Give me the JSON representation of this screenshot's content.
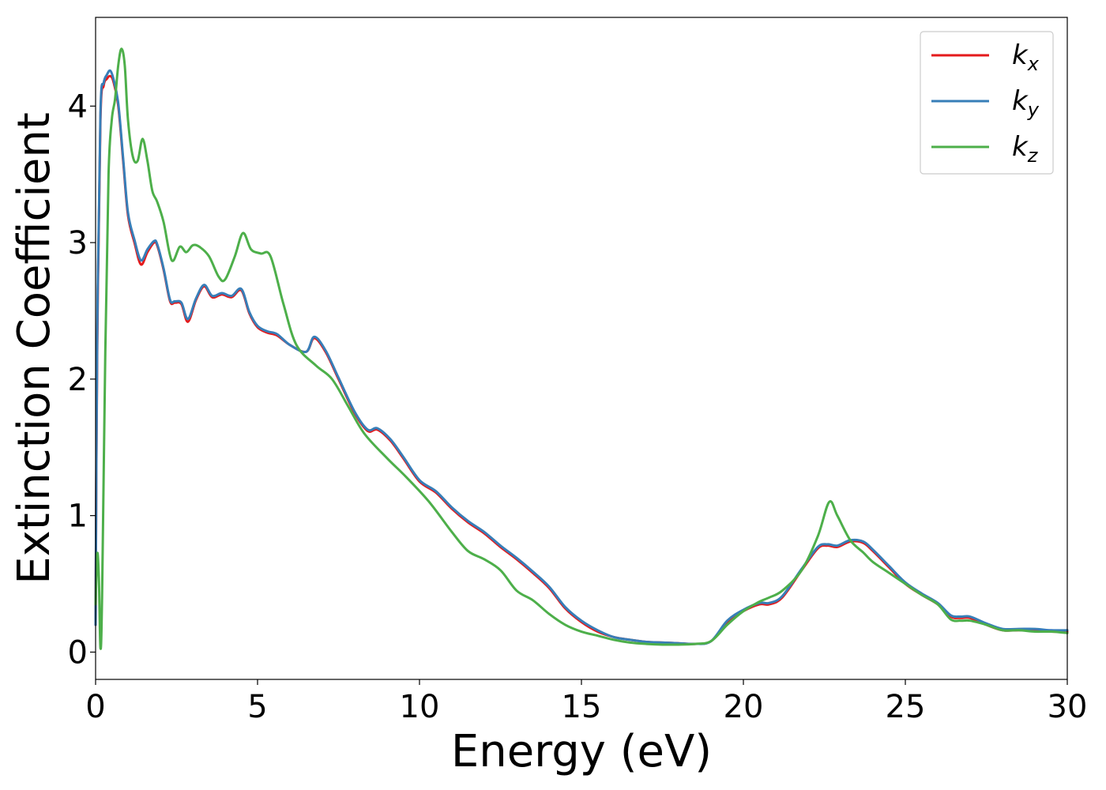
{
  "chart_data": {
    "type": "line",
    "xlabel": "Energy (eV)",
    "ylabel": "Extinction Coefficient",
    "xlim": [
      0,
      30
    ],
    "ylim": [
      -0.2,
      4.65
    ],
    "xticks": [
      0,
      5,
      10,
      15,
      20,
      25,
      30
    ],
    "yticks": [
      0,
      1,
      2,
      3,
      4
    ],
    "xtick_labels": [
      "0",
      "5",
      "10",
      "15",
      "20",
      "25",
      "30"
    ],
    "ytick_labels": [
      "0",
      "1",
      "2",
      "3",
      "4"
    ],
    "grid": false,
    "legend_position": "top-right",
    "legend": [
      {
        "base": "k",
        "sub": "x",
        "color": "#e41a1c"
      },
      {
        "base": "k",
        "sub": "y",
        "color": "#377eb8"
      },
      {
        "base": "k",
        "sub": "z",
        "color": "#4daf4a"
      }
    ],
    "series": [
      {
        "name": "k_x",
        "color": "#e41a1c",
        "x": [
          0,
          0.05,
          0.15,
          0.25,
          0.35,
          0.45,
          0.55,
          0.7,
          0.85,
          1.0,
          1.2,
          1.4,
          1.6,
          1.8,
          1.9,
          2.1,
          2.3,
          2.45,
          2.65,
          2.85,
          3.1,
          3.35,
          3.6,
          3.9,
          4.2,
          4.5,
          4.75,
          5.0,
          5.3,
          5.6,
          6.0,
          6.5,
          6.75,
          7.1,
          7.5,
          8.0,
          8.4,
          8.7,
          9.1,
          9.5,
          10.0,
          10.5,
          11.0,
          11.5,
          12.0,
          12.5,
          13.0,
          13.5,
          14.0,
          14.5,
          15.0,
          15.5,
          16.0,
          16.5,
          17.0,
          17.5,
          18.0,
          18.5,
          19.0,
          19.5,
          20.0,
          20.5,
          20.8,
          21.2,
          21.8,
          22.3,
          22.6,
          22.9,
          23.3,
          23.7,
          24.0,
          24.5,
          25.0,
          25.5,
          26.0,
          26.4,
          26.7,
          27.0,
          27.5,
          28.0,
          28.5,
          29.0,
          29.5,
          30.0
        ],
        "y": [
          0.2,
          2.2,
          3.9,
          4.15,
          4.2,
          4.22,
          4.18,
          4.0,
          3.6,
          3.2,
          3.0,
          2.84,
          2.93,
          3.0,
          2.98,
          2.8,
          2.57,
          2.56,
          2.55,
          2.42,
          2.58,
          2.68,
          2.6,
          2.62,
          2.6,
          2.65,
          2.48,
          2.38,
          2.34,
          2.32,
          2.25,
          2.2,
          2.3,
          2.2,
          2.0,
          1.75,
          1.62,
          1.63,
          1.55,
          1.42,
          1.25,
          1.17,
          1.05,
          0.95,
          0.87,
          0.77,
          0.68,
          0.58,
          0.47,
          0.32,
          0.22,
          0.15,
          0.11,
          0.09,
          0.075,
          0.07,
          0.065,
          0.06,
          0.08,
          0.22,
          0.3,
          0.35,
          0.35,
          0.4,
          0.6,
          0.76,
          0.78,
          0.77,
          0.81,
          0.8,
          0.74,
          0.62,
          0.5,
          0.42,
          0.35,
          0.26,
          0.25,
          0.25,
          0.2,
          0.16,
          0.16,
          0.16,
          0.15,
          0.15
        ]
      },
      {
        "name": "k_y",
        "color": "#377eb8",
        "x": [
          0,
          0.05,
          0.15,
          0.25,
          0.35,
          0.45,
          0.55,
          0.7,
          0.85,
          1.0,
          1.2,
          1.4,
          1.6,
          1.8,
          1.9,
          2.1,
          2.3,
          2.45,
          2.65,
          2.85,
          3.1,
          3.35,
          3.6,
          3.9,
          4.2,
          4.5,
          4.75,
          5.0,
          5.3,
          5.6,
          6.0,
          6.5,
          6.75,
          7.1,
          7.5,
          8.0,
          8.4,
          8.7,
          9.1,
          9.5,
          10.0,
          10.5,
          11.0,
          11.5,
          12.0,
          12.5,
          13.0,
          13.5,
          14.0,
          14.5,
          15.0,
          15.5,
          16.0,
          16.5,
          17.0,
          17.5,
          18.0,
          18.5,
          19.0,
          19.5,
          20.0,
          20.5,
          20.8,
          21.2,
          21.8,
          22.3,
          22.6,
          22.9,
          23.3,
          23.7,
          24.0,
          24.5,
          25.0,
          25.5,
          26.0,
          26.4,
          26.7,
          27.0,
          27.5,
          28.0,
          28.5,
          29.0,
          29.5,
          30.0
        ],
        "y": [
          0.2,
          2.3,
          3.95,
          4.17,
          4.23,
          4.26,
          4.2,
          4.02,
          3.62,
          3.22,
          3.02,
          2.87,
          2.95,
          3.01,
          2.99,
          2.81,
          2.58,
          2.57,
          2.56,
          2.44,
          2.59,
          2.69,
          2.61,
          2.63,
          2.61,
          2.66,
          2.49,
          2.39,
          2.35,
          2.33,
          2.25,
          2.2,
          2.31,
          2.21,
          2.01,
          1.76,
          1.63,
          1.64,
          1.56,
          1.43,
          1.26,
          1.18,
          1.06,
          0.96,
          0.88,
          0.78,
          0.69,
          0.59,
          0.48,
          0.33,
          0.23,
          0.16,
          0.11,
          0.09,
          0.075,
          0.07,
          0.065,
          0.06,
          0.08,
          0.23,
          0.31,
          0.36,
          0.36,
          0.41,
          0.61,
          0.77,
          0.79,
          0.78,
          0.82,
          0.81,
          0.75,
          0.63,
          0.51,
          0.43,
          0.36,
          0.27,
          0.26,
          0.26,
          0.21,
          0.17,
          0.17,
          0.17,
          0.16,
          0.16
        ]
      },
      {
        "name": "k_z",
        "color": "#4daf4a",
        "x": [
          0,
          0.05,
          0.1,
          0.15,
          0.2,
          0.3,
          0.4,
          0.5,
          0.6,
          0.7,
          0.8,
          0.9,
          1.0,
          1.15,
          1.3,
          1.45,
          1.6,
          1.75,
          1.9,
          2.1,
          2.35,
          2.6,
          2.8,
          3.0,
          3.2,
          3.5,
          3.8,
          4.0,
          4.3,
          4.55,
          4.8,
          5.1,
          5.4,
          5.8,
          6.2,
          6.8,
          7.3,
          7.8,
          8.3,
          9.0,
          9.6,
          10.3,
          11.0,
          11.5,
          12.0,
          12.5,
          13.0,
          13.5,
          14.0,
          14.5,
          15.0,
          15.5,
          16.0,
          16.5,
          17.0,
          17.5,
          18.0,
          18.5,
          19.0,
          19.5,
          20.0,
          20.5,
          20.8,
          21.2,
          21.8,
          22.3,
          22.65,
          22.9,
          23.3,
          23.7,
          24.0,
          24.5,
          25.0,
          25.5,
          26.0,
          26.4,
          26.7,
          27.0,
          27.5,
          28.0,
          28.5,
          29.0,
          29.5,
          30.0
        ],
        "y": [
          0.35,
          0.72,
          0.55,
          0.03,
          0.4,
          2.2,
          3.5,
          3.9,
          4.05,
          4.3,
          4.42,
          4.3,
          3.9,
          3.63,
          3.6,
          3.76,
          3.6,
          3.38,
          3.3,
          3.15,
          2.87,
          2.97,
          2.93,
          2.98,
          2.97,
          2.9,
          2.75,
          2.73,
          2.9,
          3.07,
          2.95,
          2.92,
          2.9,
          2.55,
          2.25,
          2.1,
          2.0,
          1.8,
          1.6,
          1.42,
          1.28,
          1.1,
          0.88,
          0.74,
          0.68,
          0.6,
          0.45,
          0.38,
          0.28,
          0.2,
          0.15,
          0.12,
          0.09,
          0.07,
          0.06,
          0.055,
          0.055,
          0.06,
          0.08,
          0.2,
          0.3,
          0.37,
          0.4,
          0.45,
          0.6,
          0.85,
          1.1,
          1.0,
          0.82,
          0.73,
          0.66,
          0.58,
          0.5,
          0.42,
          0.35,
          0.24,
          0.23,
          0.23,
          0.2,
          0.16,
          0.16,
          0.15,
          0.15,
          0.14
        ]
      }
    ]
  }
}
